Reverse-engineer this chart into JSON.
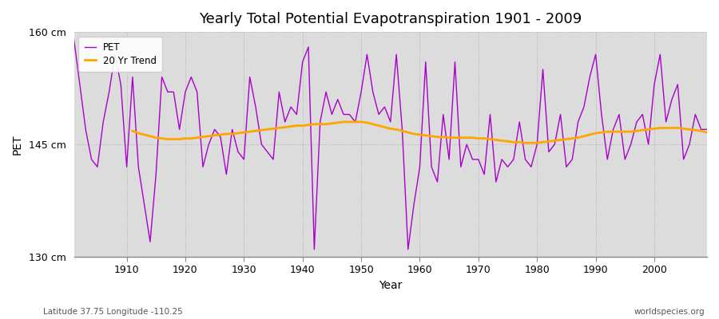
{
  "title": "Yearly Total Potential Evapotranspiration 1901 - 2009",
  "ylabel": "PET",
  "xlabel": "Year",
  "subtitle_left": "Latitude 37.75 Longitude -110.25",
  "subtitle_right": "worldspecies.org",
  "ylim": [
    130,
    160
  ],
  "yticks": [
    130,
    145,
    160
  ],
  "ytick_labels": [
    "130 cm",
    "145 cm",
    "160 cm"
  ],
  "xlim": [
    1901,
    2009
  ],
  "xticks": [
    1910,
    1920,
    1930,
    1940,
    1950,
    1960,
    1970,
    1980,
    1990,
    2000
  ],
  "pet_color": "#AA00CC",
  "trend_color": "#FFA500",
  "plot_bg_color": "#DCDCDC",
  "fig_bg_color": "#FFFFFF",
  "pet_linewidth": 1.0,
  "trend_linewidth": 2.0,
  "legend_labels": [
    "PET",
    "20 Yr Trend"
  ],
  "years": [
    1901,
    1902,
    1903,
    1904,
    1905,
    1906,
    1907,
    1908,
    1909,
    1910,
    1911,
    1912,
    1913,
    1914,
    1915,
    1916,
    1917,
    1918,
    1919,
    1920,
    1921,
    1922,
    1923,
    1924,
    1925,
    1926,
    1927,
    1928,
    1929,
    1930,
    1931,
    1932,
    1933,
    1934,
    1935,
    1936,
    1937,
    1938,
    1939,
    1940,
    1941,
    1942,
    1943,
    1944,
    1945,
    1946,
    1947,
    1948,
    1949,
    1950,
    1951,
    1952,
    1953,
    1954,
    1955,
    1956,
    1957,
    1958,
    1959,
    1960,
    1961,
    1962,
    1963,
    1964,
    1965,
    1966,
    1967,
    1968,
    1969,
    1970,
    1971,
    1972,
    1973,
    1974,
    1975,
    1976,
    1977,
    1978,
    1979,
    1980,
    1981,
    1982,
    1983,
    1984,
    1985,
    1986,
    1987,
    1988,
    1989,
    1990,
    1991,
    1992,
    1993,
    1994,
    1995,
    1996,
    1997,
    1998,
    1999,
    2000,
    2001,
    2002,
    2003,
    2004,
    2005,
    2006,
    2007,
    2008,
    2009
  ],
  "pet_values": [
    159,
    153,
    147,
    143,
    142,
    148,
    152,
    157,
    153,
    142,
    154,
    142,
    137,
    132,
    141,
    154,
    152,
    152,
    147,
    152,
    154,
    152,
    142,
    145,
    147,
    146,
    141,
    147,
    144,
    143,
    154,
    150,
    145,
    144,
    143,
    152,
    148,
    150,
    149,
    156,
    158,
    131,
    148,
    152,
    149,
    151,
    149,
    149,
    148,
    152,
    157,
    152,
    149,
    150,
    148,
    157,
    147,
    131,
    137,
    142,
    156,
    142,
    140,
    149,
    143,
    156,
    142,
    145,
    143,
    143,
    141,
    149,
    140,
    143,
    142,
    143,
    148,
    143,
    142,
    145,
    155,
    144,
    145,
    149,
    142,
    143,
    148,
    150,
    154,
    157,
    149,
    143,
    147,
    149,
    143,
    145,
    148,
    149,
    145,
    153,
    157,
    148,
    151,
    153,
    143,
    145,
    149,
    147,
    147
  ],
  "trend_values": [
    null,
    null,
    null,
    null,
    null,
    null,
    null,
    null,
    null,
    null,
    146.8,
    146.5,
    146.3,
    146.1,
    145.9,
    145.8,
    145.7,
    145.7,
    145.7,
    145.8,
    145.8,
    145.9,
    146.0,
    146.1,
    146.2,
    146.3,
    146.4,
    146.4,
    146.5,
    146.6,
    146.7,
    146.8,
    146.9,
    147.0,
    147.1,
    147.2,
    147.3,
    147.4,
    147.5,
    147.5,
    147.6,
    147.7,
    147.7,
    147.7,
    147.8,
    147.9,
    148.0,
    148.0,
    148.0,
    148.0,
    147.9,
    147.7,
    147.5,
    147.3,
    147.1,
    147.0,
    146.8,
    146.6,
    146.4,
    146.3,
    146.2,
    146.1,
    146.0,
    146.0,
    145.9,
    145.9,
    145.9,
    145.9,
    145.9,
    145.8,
    145.8,
    145.7,
    145.6,
    145.5,
    145.4,
    145.3,
    145.3,
    145.2,
    145.2,
    145.2,
    145.3,
    145.4,
    145.5,
    145.6,
    145.7,
    145.8,
    145.9,
    146.1,
    146.3,
    146.5,
    146.6,
    146.7,
    146.7,
    146.7,
    146.7,
    146.7,
    146.8,
    146.9,
    147.0,
    147.1,
    147.2,
    147.2,
    147.2,
    147.2,
    147.1,
    147.0,
    146.9,
    146.8,
    146.6
  ]
}
